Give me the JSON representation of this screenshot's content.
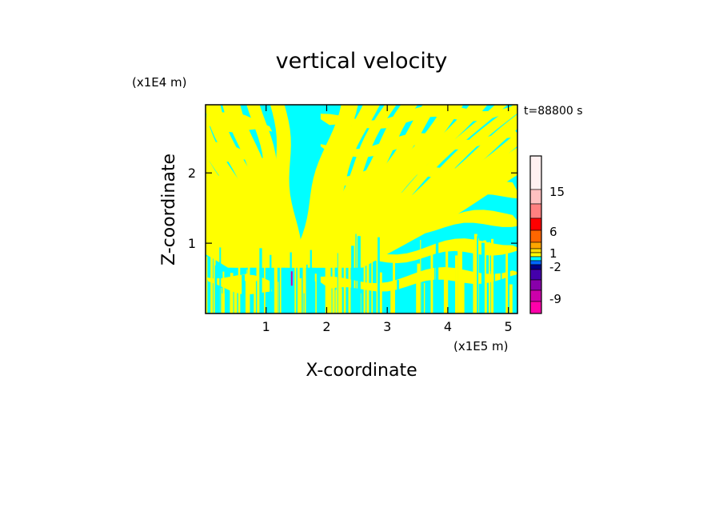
{
  "chart_data": {
    "type": "heatmap",
    "title": "vertical velocity",
    "xlabel": "X-coordinate",
    "ylabel": "Z-coordinate",
    "x_unit": "(x1E5 m)",
    "y_unit": "(x1E4 m)",
    "time_label": "t=88800 s",
    "xlim": [
      0,
      5.15
    ],
    "ylim": [
      0,
      2.97
    ],
    "x_ticks": [
      1,
      2,
      3,
      4,
      5
    ],
    "y_ticks": [
      1,
      2
    ],
    "dominant_colors": {
      "positive_weak": "#ffff00",
      "negative_weak": "#00ffff"
    },
    "colorbar": {
      "tick_labels": [
        "15",
        "6",
        "1",
        "-2",
        "-9"
      ],
      "tick_values": [
        15,
        6,
        1,
        -2,
        -9
      ],
      "levels_top_to_bottom": [
        {
          "color": "#fff0f0"
        },
        {
          "color": "#ffc0c0"
        },
        {
          "color": "#ff8080"
        },
        {
          "color": "#ff0000"
        },
        {
          "color": "#ff6600"
        },
        {
          "color": "#ffa500"
        },
        {
          "color": "#ffdd00"
        },
        {
          "color": "#ffff00"
        },
        {
          "color": "#00ffff"
        },
        {
          "color": "#0066ff"
        },
        {
          "color": "#000088"
        },
        {
          "color": "#4400aa"
        },
        {
          "color": "#8800aa"
        },
        {
          "color": "#cc00aa"
        },
        {
          "color": "#ff00aa"
        }
      ]
    }
  }
}
